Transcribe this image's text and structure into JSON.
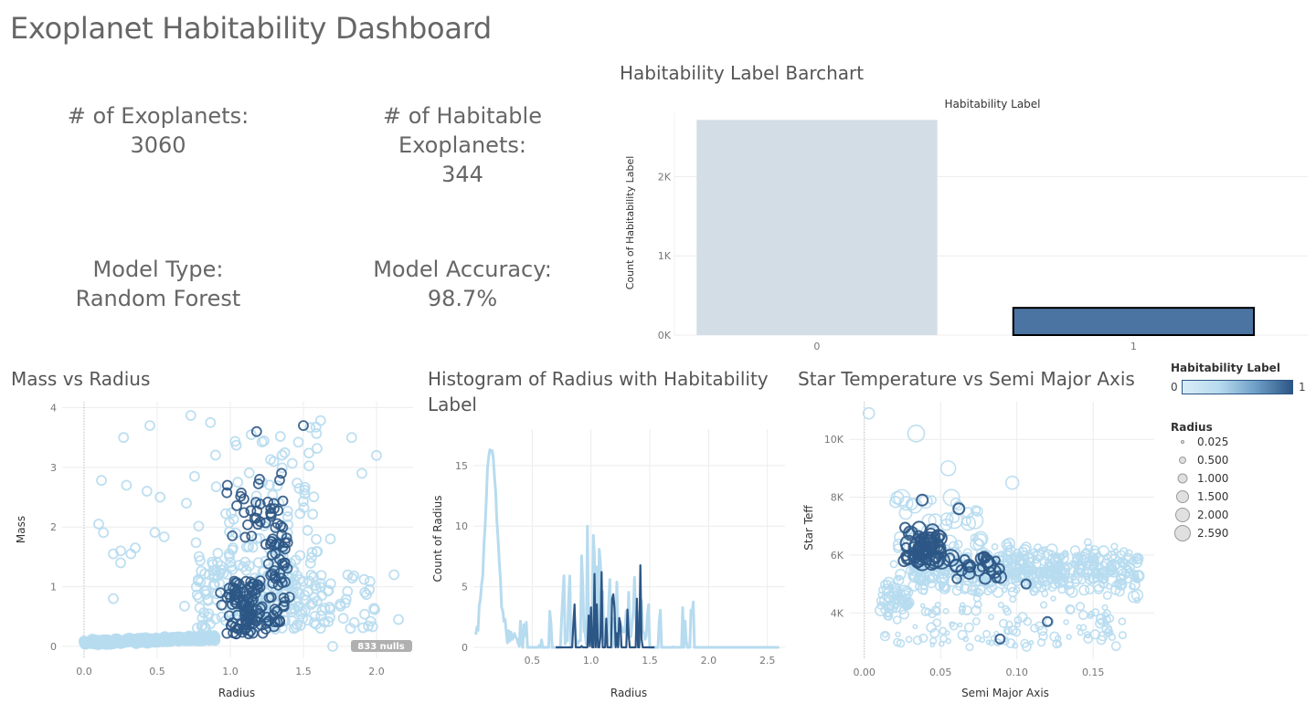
{
  "dashboard": {
    "title": "Exoplanet Habitability Dashboard"
  },
  "kpis": {
    "exoplanets": {
      "label": "# of Exoplanets:",
      "value": "3060"
    },
    "habitable": {
      "label": "# of Habitable Exoplanets:",
      "value": "344"
    },
    "model_type": {
      "label": "Model Type:",
      "value": "Random Forest"
    },
    "model_accuracy": {
      "label": "Model Accuracy:",
      "value": "98.7%"
    }
  },
  "colors": {
    "light": "#b7dbef",
    "dark": "#2c5685",
    "bar0": "#d3dde6",
    "bar1": "#4b74a2",
    "grid": "#ececec"
  },
  "chart_data": [
    {
      "id": "barchart",
      "section_title": "Habitability Label Barchart",
      "type": "bar",
      "header": "Habitability Label",
      "categories": [
        "0",
        "1"
      ],
      "values": [
        2716,
        344
      ],
      "ylabel": "Count of Habitability Label",
      "ylim": [
        0,
        2800
      ],
      "yticks": [
        0,
        1000,
        2000
      ],
      "ytick_labels": [
        "0K",
        "1K",
        "2K"
      ],
      "grid": true
    },
    {
      "id": "scatter_mass_radius",
      "section_title": "Mass vs Radius",
      "type": "scatter",
      "xlabel": "Radius",
      "ylabel": "Mass",
      "xlim": [
        -0.15,
        2.25
      ],
      "ylim": [
        -0.2,
        4.1
      ],
      "xticks": [
        0,
        0.5,
        1,
        1.5,
        2
      ],
      "xtick_labels": [
        "0.0",
        "0.5",
        "1.0",
        "1.5",
        "2.0"
      ],
      "yticks": [
        0,
        1,
        2,
        3,
        4
      ],
      "ytick_labels": [
        "0",
        "1",
        "2",
        "3",
        "4"
      ],
      "null_badge": "833 nulls",
      "grid": true
    },
    {
      "id": "histogram_radius",
      "section_title": "Histogram of Radius with Habitability Label",
      "type": "line",
      "xlabel": "Radius",
      "ylabel": "Count of Radius",
      "xlim": [
        0,
        2.65
      ],
      "ylim": [
        0,
        18
      ],
      "xticks": [
        0.5,
        1,
        1.5,
        2,
        2.5
      ],
      "xtick_labels": [
        "0.5",
        "1.0",
        "1.5",
        "2.0",
        "2.5"
      ],
      "yticks": [
        0,
        5,
        10,
        15
      ],
      "ytick_labels": [
        "0",
        "5",
        "10",
        "15"
      ],
      "grid": true
    },
    {
      "id": "scatter_teff_sma",
      "section_title": "Star Temperature vs Semi Major Axis",
      "type": "scatter",
      "xlabel": "Semi Major Axis",
      "ylabel": "Star Teff",
      "xlim": [
        -0.01,
        0.19
      ],
      "ylim": [
        2400,
        11300
      ],
      "xticks": [
        0,
        0.05,
        0.1,
        0.15
      ],
      "xtick_labels": [
        "0.00",
        "0.05",
        "0.10",
        "0.15"
      ],
      "yticks": [
        4000,
        6000,
        8000,
        10000
      ],
      "ytick_labels": [
        "4K",
        "6K",
        "8K",
        "10K"
      ],
      "grid": true
    }
  ],
  "legend": {
    "color_title": "Habitability Label",
    "color_min": "0",
    "color_max": "1",
    "size_title": "Radius",
    "size_items": [
      "0.025",
      "0.500",
      "1.000",
      "1.500",
      "2.000",
      "2.590"
    ]
  }
}
